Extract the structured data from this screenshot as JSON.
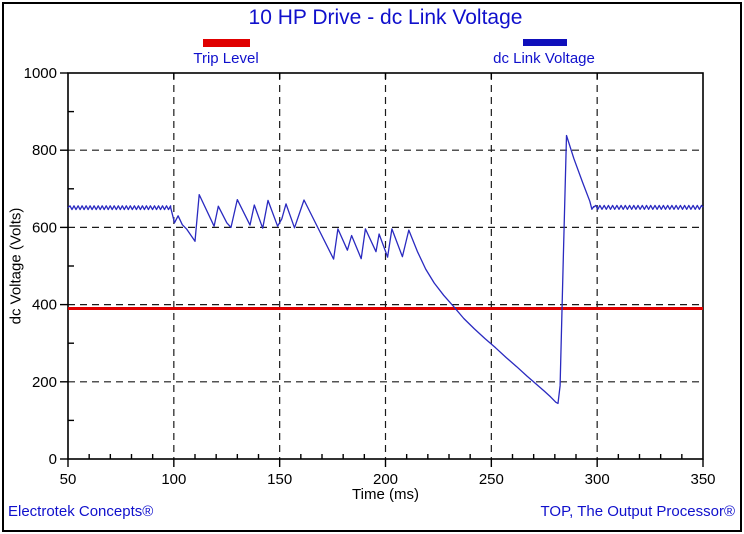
{
  "footer": {
    "left": "Electrotek Concepts®",
    "right": "TOP, The Output Processor®"
  },
  "colors": {
    "accent_blue": "#1010cc",
    "trip_red": "#e00000",
    "curve_blue": "#2a2ac0"
  },
  "chart_data": {
    "type": "line",
    "title": "10 HP Drive - dc Link Voltage",
    "xlabel": "Time (ms)",
    "ylabel": "dc Voltage (Volts)",
    "xlim": [
      50,
      350
    ],
    "ylim": [
      0,
      1000
    ],
    "grid": "dashed",
    "legend_position": "top",
    "x_major_ticks": [
      50,
      100,
      150,
      200,
      250,
      300,
      350
    ],
    "x_minor_step": 10,
    "y_major_ticks": [
      0,
      200,
      400,
      600,
      800,
      1000
    ],
    "y_minor_step": 100,
    "x_gridlines": [
      100,
      150,
      200,
      250,
      300
    ],
    "y_gridlines": [
      200,
      400,
      600,
      800
    ],
    "series": [
      {
        "name": "Trip Level",
        "type": "hline",
        "color": "#e00000",
        "value": 390
      },
      {
        "name": "dc Link Voltage",
        "type": "waveform",
        "color": "#2a2ac0",
        "segments": [
          {
            "kind": "ripple",
            "t0": 50,
            "t1": 98.5,
            "base": 651,
            "amplitude": 5,
            "period": 1.9
          },
          {
            "kind": "points",
            "points": [
              [
                100.3,
                612
              ],
              [
                102,
                630
              ],
              [
                104,
                607
              ],
              [
                106,
                596
              ],
              [
                110,
                564
              ],
              [
                112,
                685
              ],
              [
                119,
                603
              ],
              [
                121,
                655
              ],
              [
                125,
                612
              ],
              [
                127,
                600
              ],
              [
                130,
                672
              ],
              [
                136,
                606
              ],
              [
                138,
                658
              ],
              [
                142,
                598
              ],
              [
                144.5,
                670
              ],
              [
                149,
                603
              ],
              [
                151,
                622
              ],
              [
                153,
                661
              ],
              [
                157,
                599
              ],
              [
                161.5,
                671
              ],
              [
                175.5,
                518
              ],
              [
                177.5,
                596
              ],
              [
                182,
                541
              ],
              [
                184,
                579
              ],
              [
                188.5,
                519
              ],
              [
                190.5,
                596
              ],
              [
                195.5,
                537
              ],
              [
                197,
                583
              ],
              [
                201,
                523
              ],
              [
                203,
                596
              ],
              [
                208,
                524
              ],
              [
                211,
                593
              ],
              [
                215,
                538
              ],
              [
                219,
                492
              ],
              [
                223,
                456
              ],
              [
                227.5,
                424
              ],
              [
                232,
                396
              ],
              [
                237,
                364
              ],
              [
                242,
                337
              ],
              [
                247,
                312
              ],
              [
                252,
                288
              ],
              [
                257,
                263
              ],
              [
                262,
                239
              ],
              [
                267,
                214
              ],
              [
                271,
                195
              ],
              [
                275,
                176
              ],
              [
                278,
                161
              ],
              [
                280.5,
                147
              ],
              [
                281.5,
                144
              ],
              [
                282.5,
                190
              ],
              [
                284,
                520
              ],
              [
                285.5,
                838
              ],
              [
                289,
                778
              ],
              [
                293,
                718
              ],
              [
                296.5,
                668
              ],
              [
                297.5,
                647
              ],
              [
                298.3,
                654
              ]
            ]
          },
          {
            "kind": "ripple",
            "t0": 298.3,
            "t1": 350,
            "base": 652,
            "amplitude": 5,
            "period": 2.0
          }
        ]
      }
    ]
  }
}
